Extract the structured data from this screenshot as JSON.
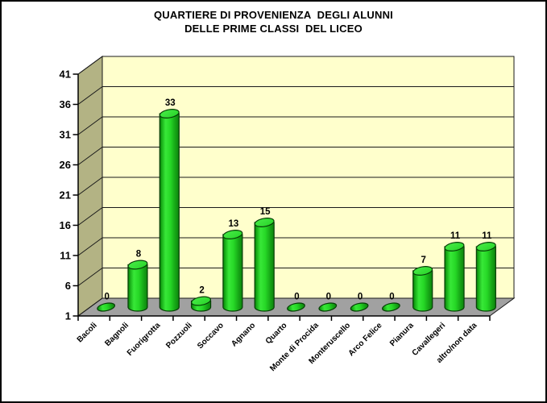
{
  "window": {
    "background": "#FFFFFF",
    "border_color": "#000000"
  },
  "title": {
    "lines": [
      "QUARTIERE DI PROVENIENZA  DEGLI ALUNNI",
      "DELLE PRIME CLASSI  DEL LICEO"
    ]
  },
  "chart_data": {
    "type": "bar",
    "subtype": "3d-cylinder",
    "title": "QUARTIERE DI PROVENIENZA DEGLI ALUNNI DELLE PRIME CLASSI DEL LICEO",
    "categories": [
      "Bacoli",
      "Bagnoli",
      "Fuorigrotta",
      "Pozzuoli",
      "Soccavo",
      "Agnano",
      "Quarto",
      "Monte di Procida",
      "Monteruscello",
      "Arco Felice",
      "Pianura",
      "Cavallegeri",
      "altro/non data"
    ],
    "values": [
      0,
      8,
      33,
      2,
      13,
      15,
      0,
      0,
      0,
      0,
      7,
      11,
      11
    ],
    "data_labels_shown": true,
    "xlabel": "",
    "ylabel": "",
    "y_axis": {
      "min": 1,
      "max": 41,
      "step": 5,
      "tick_labels": [
        "41",
        "36",
        "31",
        "26",
        "21",
        "16",
        "11",
        "6",
        "1"
      ]
    },
    "grid": true,
    "legend": "none",
    "colors": {
      "back_wall": "#FFFFCC",
      "side_wall": "#B3B384",
      "floor": "#A1A1A1",
      "gridline": "#1A1A1A",
      "axis": "#000000",
      "text": "#000000",
      "bar_outline": "#063E06",
      "bar_gradient_stops": [
        {
          "offset": 0,
          "color": "#0A780A"
        },
        {
          "offset": 0.1,
          "color": "#17AA17"
        },
        {
          "offset": 0.3,
          "color": "#38E838"
        },
        {
          "offset": 0.55,
          "color": "#26D826"
        },
        {
          "offset": 0.8,
          "color": "#16A616"
        },
        {
          "offset": 1,
          "color": "#0D840D"
        }
      ],
      "bar_top_gradient_stops": [
        {
          "offset": 0,
          "color": "#49EC49"
        },
        {
          "offset": 1,
          "color": "#27D427"
        }
      ]
    }
  }
}
